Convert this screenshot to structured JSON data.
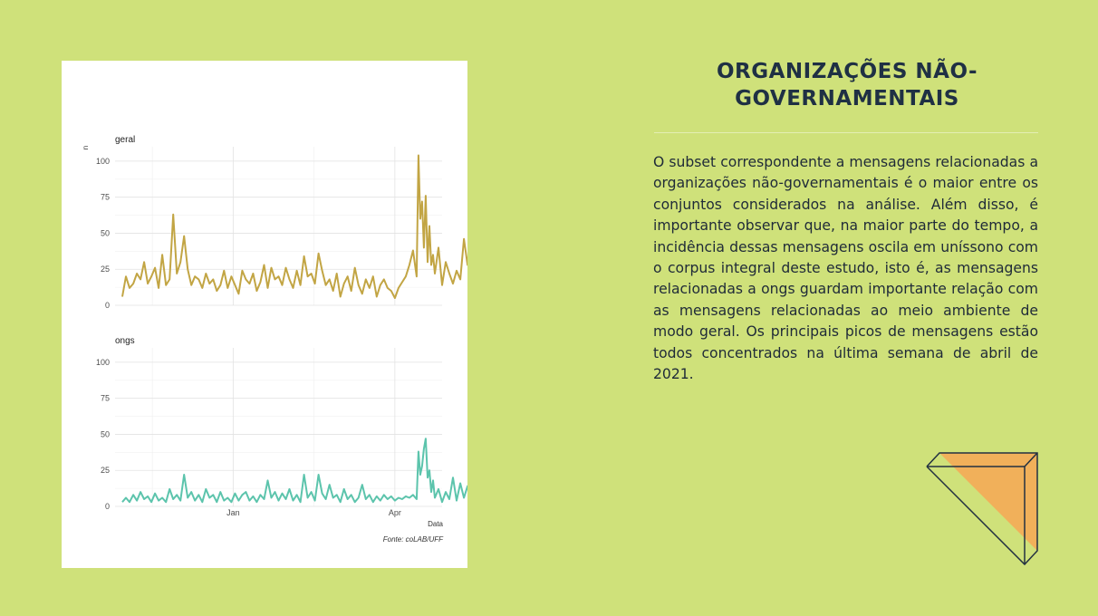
{
  "title": "ORGANIZAÇÕES NÃO-GOVERNAMENTAIS",
  "body": "O subset correspondente a mensagens relacionadas a organizações não-governamentais é o maior entre os conjuntos considerados na análise. Além disso, é importante observar que, na maior parte do tempo, a incidência dessas mensagens oscila em uníssono com o corpus integral deste estudo, isto é, as mensagens relacionadas a ongs guardam importante relação com as mensagens relacionadas ao meio ambiente de modo geral. Os principais picos de mensagens estão todos concentrados na última semana de abril de 2021.",
  "colors": {
    "background": "#cfe17a",
    "geral_line": "#c2a544",
    "ongs_line": "#5cc4ac",
    "deco_fill": "#f1b05a",
    "deco_stroke": "#233141"
  },
  "chart_data": {
    "type": "line",
    "ylabel": "n",
    "xlabel": "Data",
    "source": "Fonte: coLAB/UFF",
    "ylim": [
      0,
      110
    ],
    "yticks": [
      0,
      25,
      50,
      75,
      100
    ],
    "xticks": [
      "Jan",
      "Apr"
    ],
    "xtick_days": [
      61,
      150
    ],
    "x_range_days": [
      -4,
      176
    ],
    "grid": true,
    "series": [
      {
        "name": "geral",
        "color": "#c2a544",
        "points": [
          [
            0,
            6
          ],
          [
            2,
            20
          ],
          [
            4,
            12
          ],
          [
            6,
            15
          ],
          [
            8,
            22
          ],
          [
            10,
            18
          ],
          [
            12,
            30
          ],
          [
            14,
            15
          ],
          [
            16,
            20
          ],
          [
            18,
            26
          ],
          [
            20,
            12
          ],
          [
            22,
            35
          ],
          [
            24,
            14
          ],
          [
            26,
            18
          ],
          [
            28,
            63
          ],
          [
            30,
            22
          ],
          [
            32,
            30
          ],
          [
            34,
            48
          ],
          [
            36,
            25
          ],
          [
            38,
            14
          ],
          [
            40,
            20
          ],
          [
            42,
            18
          ],
          [
            44,
            12
          ],
          [
            46,
            22
          ],
          [
            48,
            15
          ],
          [
            50,
            18
          ],
          [
            52,
            10
          ],
          [
            54,
            14
          ],
          [
            56,
            24
          ],
          [
            58,
            12
          ],
          [
            60,
            20
          ],
          [
            62,
            14
          ],
          [
            64,
            8
          ],
          [
            66,
            24
          ],
          [
            68,
            18
          ],
          [
            70,
            15
          ],
          [
            72,
            22
          ],
          [
            74,
            10
          ],
          [
            76,
            16
          ],
          [
            78,
            28
          ],
          [
            80,
            12
          ],
          [
            82,
            26
          ],
          [
            84,
            18
          ],
          [
            86,
            20
          ],
          [
            88,
            14
          ],
          [
            90,
            26
          ],
          [
            92,
            18
          ],
          [
            94,
            12
          ],
          [
            96,
            24
          ],
          [
            98,
            14
          ],
          [
            100,
            34
          ],
          [
            102,
            20
          ],
          [
            104,
            22
          ],
          [
            106,
            15
          ],
          [
            108,
            36
          ],
          [
            110,
            24
          ],
          [
            112,
            14
          ],
          [
            114,
            18
          ],
          [
            116,
            10
          ],
          [
            118,
            22
          ],
          [
            120,
            6
          ],
          [
            122,
            15
          ],
          [
            124,
            20
          ],
          [
            126,
            10
          ],
          [
            128,
            26
          ],
          [
            130,
            14
          ],
          [
            132,
            8
          ],
          [
            134,
            18
          ],
          [
            136,
            12
          ],
          [
            138,
            20
          ],
          [
            140,
            6
          ],
          [
            142,
            14
          ],
          [
            144,
            18
          ],
          [
            146,
            12
          ],
          [
            148,
            10
          ],
          [
            150,
            5
          ],
          [
            152,
            12
          ],
          [
            154,
            16
          ],
          [
            156,
            20
          ],
          [
            158,
            28
          ],
          [
            160,
            38
          ],
          [
            162,
            20
          ],
          [
            163,
            104
          ],
          [
            164,
            60
          ],
          [
            165,
            72
          ],
          [
            166,
            40
          ],
          [
            167,
            76
          ],
          [
            168,
            30
          ],
          [
            169,
            55
          ],
          [
            170,
            28
          ],
          [
            171,
            35
          ],
          [
            172,
            22
          ],
          [
            174,
            40
          ],
          [
            176,
            14
          ],
          [
            178,
            30
          ],
          [
            180,
            22
          ],
          [
            182,
            15
          ],
          [
            184,
            24
          ],
          [
            186,
            18
          ],
          [
            188,
            46
          ],
          [
            190,
            28
          ],
          [
            192,
            55
          ],
          [
            194,
            22
          ],
          [
            196,
            35
          ],
          [
            198,
            14
          ],
          [
            200,
            28
          ],
          [
            202,
            18
          ],
          [
            204,
            22
          ],
          [
            205,
            14
          ],
          [
            206,
            36
          ],
          [
            207,
            22
          ],
          [
            208,
            42
          ],
          [
            209,
            16
          ],
          [
            210,
            30
          ],
          [
            211,
            20
          ],
          [
            212,
            42
          ],
          [
            213,
            14
          ],
          [
            214,
            38
          ],
          [
            215,
            18
          ]
        ]
      },
      {
        "name": "ongs",
        "color": "#5cc4ac",
        "points": [
          [
            0,
            3
          ],
          [
            2,
            6
          ],
          [
            4,
            3
          ],
          [
            6,
            8
          ],
          [
            8,
            4
          ],
          [
            10,
            10
          ],
          [
            12,
            5
          ],
          [
            14,
            7
          ],
          [
            16,
            3
          ],
          [
            18,
            9
          ],
          [
            20,
            4
          ],
          [
            22,
            6
          ],
          [
            24,
            3
          ],
          [
            26,
            12
          ],
          [
            28,
            5
          ],
          [
            30,
            8
          ],
          [
            32,
            4
          ],
          [
            34,
            22
          ],
          [
            36,
            6
          ],
          [
            38,
            10
          ],
          [
            40,
            4
          ],
          [
            42,
            8
          ],
          [
            44,
            3
          ],
          [
            46,
            12
          ],
          [
            48,
            6
          ],
          [
            50,
            8
          ],
          [
            52,
            3
          ],
          [
            54,
            10
          ],
          [
            56,
            4
          ],
          [
            58,
            6
          ],
          [
            60,
            3
          ],
          [
            62,
            9
          ],
          [
            64,
            4
          ],
          [
            66,
            8
          ],
          [
            68,
            10
          ],
          [
            70,
            4
          ],
          [
            72,
            7
          ],
          [
            74,
            3
          ],
          [
            76,
            8
          ],
          [
            78,
            5
          ],
          [
            80,
            18
          ],
          [
            82,
            6
          ],
          [
            84,
            10
          ],
          [
            86,
            4
          ],
          [
            88,
            9
          ],
          [
            90,
            5
          ],
          [
            92,
            12
          ],
          [
            94,
            4
          ],
          [
            96,
            8
          ],
          [
            98,
            3
          ],
          [
            100,
            22
          ],
          [
            102,
            6
          ],
          [
            104,
            10
          ],
          [
            106,
            4
          ],
          [
            108,
            22
          ],
          [
            110,
            9
          ],
          [
            112,
            5
          ],
          [
            114,
            15
          ],
          [
            116,
            6
          ],
          [
            118,
            8
          ],
          [
            120,
            3
          ],
          [
            122,
            12
          ],
          [
            124,
            5
          ],
          [
            126,
            8
          ],
          [
            128,
            3
          ],
          [
            130,
            6
          ],
          [
            132,
            15
          ],
          [
            134,
            5
          ],
          [
            136,
            8
          ],
          [
            138,
            3
          ],
          [
            140,
            7
          ],
          [
            142,
            4
          ],
          [
            144,
            8
          ],
          [
            146,
            5
          ],
          [
            148,
            7
          ],
          [
            150,
            4
          ],
          [
            152,
            6
          ],
          [
            154,
            5
          ],
          [
            156,
            7
          ],
          [
            158,
            6
          ],
          [
            160,
            8
          ],
          [
            162,
            5
          ],
          [
            163,
            38
          ],
          [
            164,
            22
          ],
          [
            165,
            28
          ],
          [
            166,
            40
          ],
          [
            167,
            47
          ],
          [
            168,
            20
          ],
          [
            169,
            25
          ],
          [
            170,
            10
          ],
          [
            171,
            18
          ],
          [
            172,
            6
          ],
          [
            174,
            12
          ],
          [
            176,
            3
          ],
          [
            178,
            10
          ],
          [
            180,
            5
          ],
          [
            182,
            20
          ],
          [
            184,
            4
          ],
          [
            186,
            16
          ],
          [
            188,
            6
          ],
          [
            190,
            14
          ],
          [
            192,
            4
          ],
          [
            194,
            10
          ],
          [
            196,
            3
          ],
          [
            198,
            7
          ],
          [
            200,
            3
          ],
          [
            202,
            9
          ],
          [
            204,
            5
          ],
          [
            206,
            20
          ],
          [
            208,
            8
          ],
          [
            210,
            4
          ],
          [
            212,
            6
          ]
        ]
      }
    ]
  }
}
